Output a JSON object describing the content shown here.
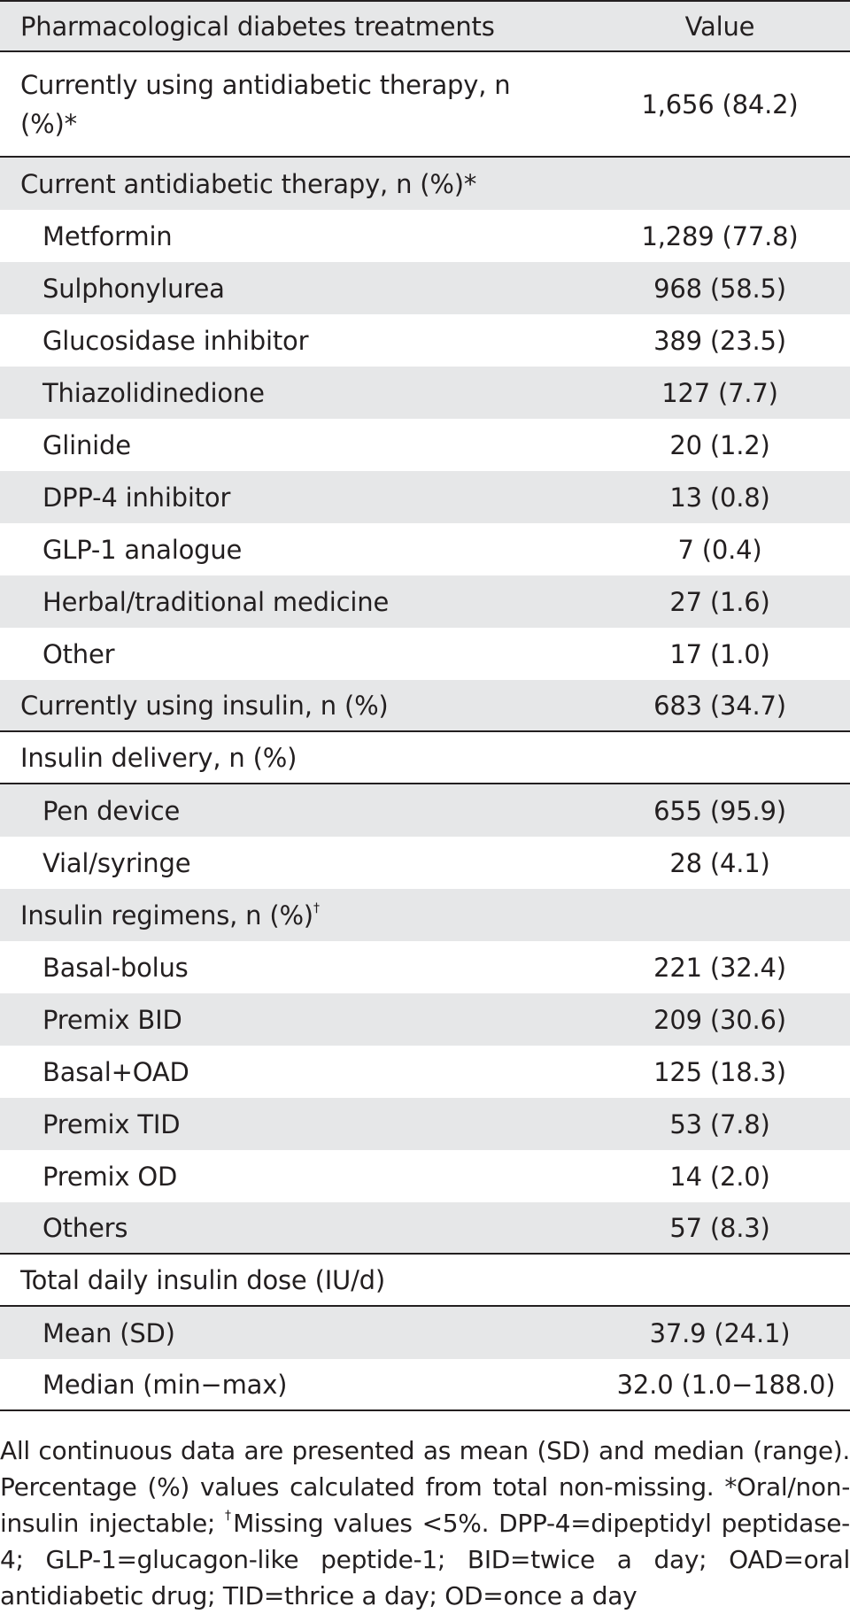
{
  "table": {
    "header": {
      "label": "Pharmacological diabetes treatments",
      "value": "Value"
    },
    "rows": [
      {
        "label": "Currently using antidiabetic therapy, n (%)*",
        "value": "1,656 (84.2)"
      },
      {
        "label": "Current antidiabetic therapy, n (%)*",
        "value": ""
      },
      {
        "label": "Metformin",
        "value": "1,289 (77.8)"
      },
      {
        "label": "Sulphonylurea",
        "value": "968 (58.5)"
      },
      {
        "label": "Glucosidase inhibitor",
        "value": "389 (23.5)"
      },
      {
        "label": "Thiazolidinedione",
        "value": "127 (7.7)"
      },
      {
        "label": "Glinide",
        "value": "20 (1.2)"
      },
      {
        "label": "DPP-4 inhibitor",
        "value": "13 (0.8)"
      },
      {
        "label": "GLP-1 analogue",
        "value": "7 (0.4)"
      },
      {
        "label": "Herbal/traditional medicine",
        "value": "27 (1.6)"
      },
      {
        "label": "Other",
        "value": "17 (1.0)"
      },
      {
        "label": "Currently using insulin, n (%)",
        "value": "683 (34.7)"
      },
      {
        "label": "Insulin delivery, n (%)",
        "value": ""
      },
      {
        "label": "Pen device",
        "value": "655 (95.9)"
      },
      {
        "label": "Vial/syringe",
        "value": "28 (4.1)"
      },
      {
        "label": "Insulin regimens, n (%)",
        "sup": "†",
        "value": ""
      },
      {
        "label": "Basal-bolus",
        "value": "221 (32.4)"
      },
      {
        "label": "Premix BID",
        "value": "209 (30.6)"
      },
      {
        "label": "Basal+OAD",
        "value": "125 (18.3)"
      },
      {
        "label": "Premix TID",
        "value": "53 (7.8)"
      },
      {
        "label": "Premix OD",
        "value": "14 (2.0)"
      },
      {
        "label": "Others",
        "value": "57 (8.3)"
      },
      {
        "label": "Total daily insulin dose (IU/d)",
        "value": ""
      },
      {
        "label": "Mean (SD)",
        "value": "37.9 (24.1)"
      },
      {
        "label": "Median (min−max)",
        "value": "32.0 (1.0−188.0)"
      }
    ]
  },
  "footnote": {
    "part1": "All continuous data are presented as mean (SD) and median (range). Percentage (%) values calculated from total non-missing. *Oral/non-insulin injectable; ",
    "dagger": "†",
    "part2": "Missing values <5%. DPP-4=dipeptidyl peptidase-4; GLP-1=glucagon-like peptide-1; BID=twice a day; OAD=oral antidiabetic drug; TID=thrice a day; OD=once a day"
  }
}
